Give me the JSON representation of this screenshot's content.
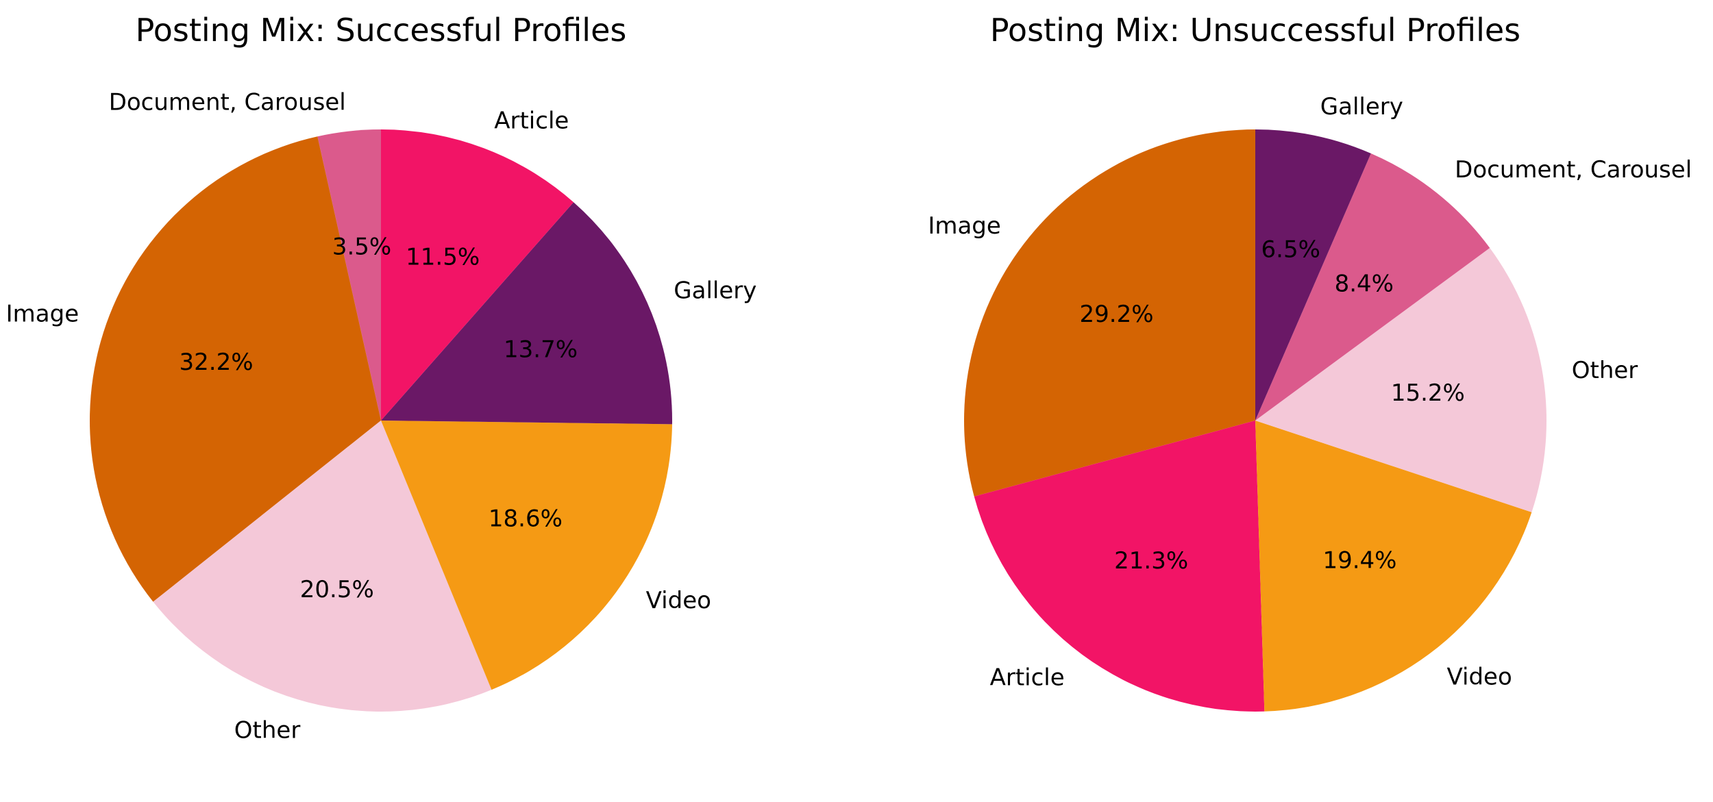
{
  "chart_data": [
    {
      "type": "pie",
      "title": "Posting Mix: Successful Profiles",
      "start_angle_deg": 90,
      "direction": "counterclockwise",
      "slices": [
        {
          "label": "Document, Carousel",
          "value": 3.5,
          "pct_text": "3.5%",
          "color": "#DB5A8C"
        },
        {
          "label": "Image",
          "value": 32.2,
          "pct_text": "32.2%",
          "color": "#D46403"
        },
        {
          "label": "Other",
          "value": 20.5,
          "pct_text": "20.5%",
          "color": "#F4C8D8"
        },
        {
          "label": "Video",
          "value": 18.6,
          "pct_text": "18.6%",
          "color": "#F59A14"
        },
        {
          "label": "Gallery",
          "value": 13.7,
          "pct_text": "13.7%",
          "color": "#6A1866"
        },
        {
          "label": "Article",
          "value": 11.5,
          "pct_text": "11.5%",
          "color": "#F21466"
        }
      ]
    },
    {
      "type": "pie",
      "title": "Posting Mix: Unsuccessful Profiles",
      "start_angle_deg": 90,
      "direction": "counterclockwise",
      "slices": [
        {
          "label": "Image",
          "value": 29.2,
          "pct_text": "29.2%",
          "color": "#D46403"
        },
        {
          "label": "Article",
          "value": 21.3,
          "pct_text": "21.3%",
          "color": "#F21466"
        },
        {
          "label": "Video",
          "value": 19.4,
          "pct_text": "19.4%",
          "color": "#F59A14"
        },
        {
          "label": "Other",
          "value": 15.2,
          "pct_text": "15.2%",
          "color": "#F4C8D8"
        },
        {
          "label": "Document, Carousel",
          "value": 8.4,
          "pct_text": "8.4%",
          "color": "#DB5A8C"
        },
        {
          "label": "Gallery",
          "value": 6.5,
          "pct_text": "6.5%",
          "color": "#6A1866"
        }
      ]
    }
  ]
}
